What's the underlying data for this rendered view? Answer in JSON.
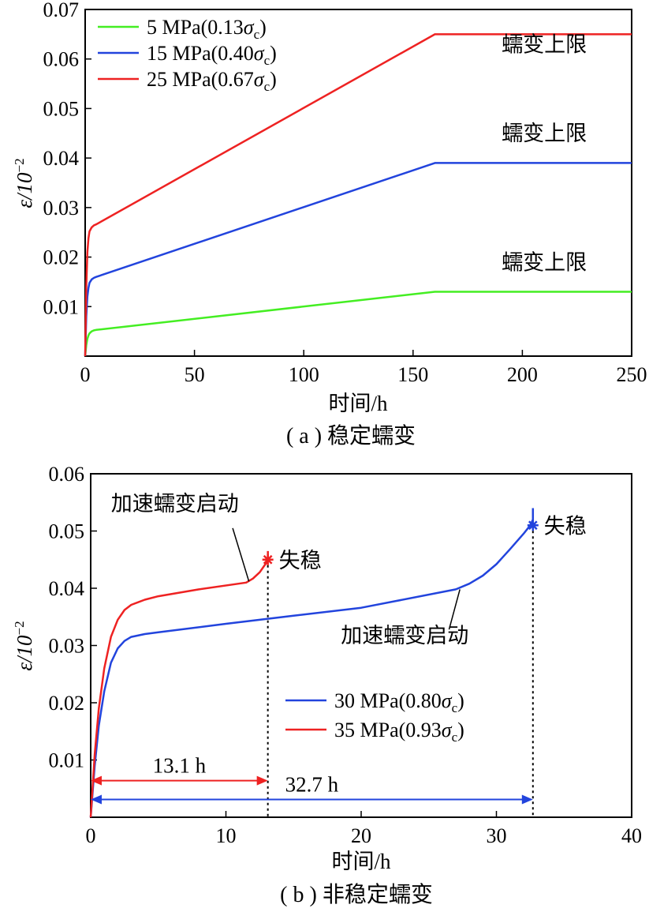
{
  "chart_data": [
    {
      "type": "line",
      "caption": "( a ) 稳定蠕变",
      "xlabel": "时间/h",
      "ylabel": "ε/10",
      "ylabel_exp": "−2",
      "xlim": [
        0,
        250
      ],
      "ylim": [
        0,
        0.07
      ],
      "xticks": [
        0,
        50,
        100,
        150,
        200,
        250
      ],
      "xtick_labels": [
        "0",
        "50",
        "100",
        "150",
        "200",
        "250"
      ],
      "yticks": [
        0.01,
        0.02,
        0.03,
        0.04,
        0.05,
        0.06,
        0.07
      ],
      "ytick_labels": [
        "0.01",
        "0.02",
        "0.03",
        "0.04",
        "0.05",
        "0.06",
        "0.07"
      ],
      "grid": false,
      "legend_position": "top-left",
      "series": [
        {
          "name": "5 MPa(0.13σc)",
          "legend_main": "5 MPa(0.13",
          "legend_sub": "c",
          "color": "#44ee22",
          "x": [
            0,
            0.5,
            1,
            1.5,
            2,
            3,
            4,
            5,
            160,
            250
          ],
          "y": [
            0,
            0.0022,
            0.0035,
            0.0042,
            0.0046,
            0.005,
            0.0052,
            0.0053,
            0.013,
            0.013
          ]
        },
        {
          "name": "15 MPa(0.40σc)",
          "legend_main": "15 MPa(0.40",
          "legend_sub": "c",
          "color": "#2244dd",
          "x": [
            0,
            0.5,
            1,
            1.5,
            2,
            3,
            4,
            5,
            160,
            250
          ],
          "y": [
            0,
            0.008,
            0.012,
            0.0138,
            0.0148,
            0.0155,
            0.0158,
            0.016,
            0.039,
            0.039
          ]
        },
        {
          "name": "25 MPa(0.67σc)",
          "legend_main": "25 MPa(0.67",
          "legend_sub": "c",
          "color": "#ee2222",
          "x": [
            0,
            0.5,
            1,
            1.5,
            2,
            3,
            4,
            5,
            160,
            250
          ],
          "y": [
            0,
            0.014,
            0.021,
            0.0238,
            0.0252,
            0.026,
            0.0264,
            0.0266,
            0.065,
            0.065
          ]
        }
      ],
      "annotations": [
        {
          "text": "蠕变上限",
          "x": 210,
          "y": 0.0615
        },
        {
          "text": "蠕变上限",
          "x": 210,
          "y": 0.0435
        },
        {
          "text": "蠕变上限",
          "x": 210,
          "y": 0.0175
        }
      ]
    },
    {
      "type": "line",
      "caption": "( b ) 非稳定蠕变",
      "xlabel": "时间/h",
      "ylabel": "ε/10",
      "ylabel_exp": "−2",
      "xlim": [
        0,
        40
      ],
      "ylim": [
        0,
        0.06
      ],
      "xticks": [
        0,
        10,
        20,
        30,
        40
      ],
      "xtick_labels": [
        "0",
        "10",
        "20",
        "30",
        "40"
      ],
      "yticks": [
        0.01,
        0.02,
        0.03,
        0.04,
        0.05,
        0.06
      ],
      "ytick_labels": [
        "0.01",
        "0.02",
        "0.03",
        "0.04",
        "0.05",
        "0.06"
      ],
      "grid": false,
      "legend_position": "bottom-center",
      "series": [
        {
          "name": "30 MPa(0.80σc)",
          "legend_main": "30 MPa(0.80",
          "legend_sub": "c",
          "color": "#2244dd",
          "x": [
            0,
            0.3,
            0.6,
            1,
            1.5,
            2,
            2.5,
            3,
            4,
            5,
            10,
            15,
            20,
            27,
            28,
            29,
            30,
            31,
            32,
            32.5,
            32.7,
            32.7
          ],
          "y": [
            0,
            0.009,
            0.016,
            0.022,
            0.027,
            0.0295,
            0.0308,
            0.0315,
            0.032,
            0.0323,
            0.0338,
            0.0352,
            0.0366,
            0.0398,
            0.0408,
            0.0422,
            0.0442,
            0.0468,
            0.0495,
            0.051,
            0.052,
            0.054
          ]
        },
        {
          "name": "35 MPa(0.93σc)",
          "legend_main": "35 MPa(0.93",
          "legend_sub": "c",
          "color": "#ee2222",
          "x": [
            0,
            0.3,
            0.6,
            1,
            1.5,
            2,
            2.5,
            3,
            4,
            5,
            8,
            11.5,
            12,
            12.5,
            13,
            13.1,
            13.1
          ],
          "y": [
            0,
            0.011,
            0.019,
            0.026,
            0.0315,
            0.0345,
            0.0362,
            0.0371,
            0.038,
            0.0386,
            0.0398,
            0.041,
            0.0417,
            0.0428,
            0.0445,
            0.0452,
            0.0465
          ]
        }
      ],
      "instability_points": [
        {
          "label": "失稳",
          "x": 13.1,
          "y": 0.045,
          "color": "#ee2222"
        },
        {
          "label": "失稳",
          "x": 32.7,
          "y": 0.051,
          "color": "#2244dd"
        }
      ],
      "accel_annotations": [
        {
          "text": "加速蠕变启动",
          "text_x": 1.5,
          "text_y": 0.0535,
          "arrow_from": [
            10.5,
            0.0505
          ],
          "arrow_to": [
            11.7,
            0.0412
          ]
        },
        {
          "text": "加速蠕变启动",
          "text_x": 18.5,
          "text_y": 0.0305,
          "arrow_from": [
            26.5,
            0.0328
          ],
          "arrow_to": [
            27.3,
            0.0398
          ]
        }
      ],
      "durations": [
        {
          "label": "13.1 h",
          "from": 0,
          "to": 13.1,
          "y": 0.0064,
          "color": "#ee2222"
        },
        {
          "label": "32.7 h",
          "from": 0,
          "to": 32.7,
          "y": 0.0031,
          "color": "#2244dd"
        }
      ]
    }
  ]
}
